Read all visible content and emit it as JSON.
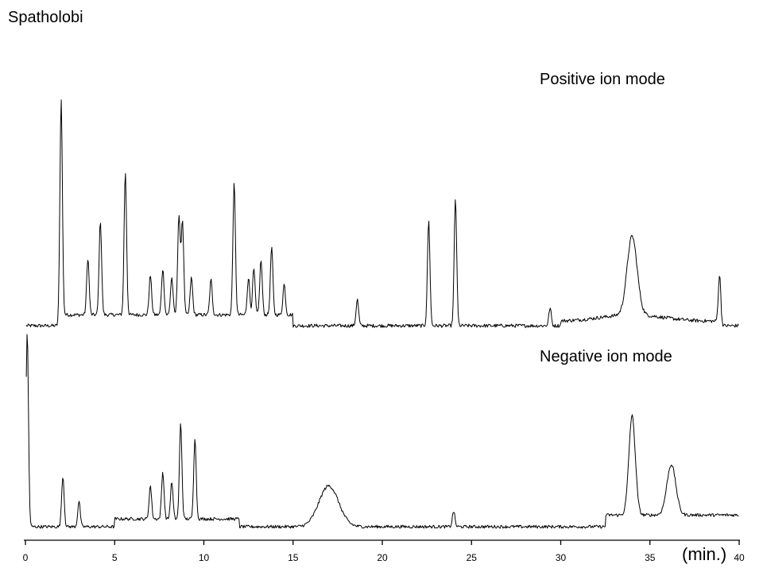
{
  "chart_data": {
    "type": "line",
    "title": "Spatholobi",
    "xlabel": "(min.)",
    "xlim": [
      0,
      40
    ],
    "x_ticks": [
      {
        "value": 0,
        "label": "0"
      },
      {
        "value": 5,
        "label": "5"
      },
      {
        "value": 10,
        "label": "10"
      },
      {
        "value": 15,
        "label": "15"
      },
      {
        "value": 20,
        "label": "20"
      },
      {
        "value": 25,
        "label": "25"
      },
      {
        "value": 30,
        "label": "30"
      },
      {
        "value": 35,
        "label": "35"
      },
      {
        "value": 40,
        "label": "40"
      }
    ],
    "grid": false,
    "y_axis_shown": false,
    "series": [
      {
        "name": "Positive ion mode",
        "baseline": 0,
        "peaks": [
          {
            "rt": 2.0,
            "height": 100
          },
          {
            "rt": 3.5,
            "height": 26
          },
          {
            "rt": 4.2,
            "height": 43
          },
          {
            "rt": 5.6,
            "height": 65
          },
          {
            "rt": 7.0,
            "height": 18
          },
          {
            "rt": 7.7,
            "height": 21
          },
          {
            "rt": 8.2,
            "height": 17
          },
          {
            "rt": 8.6,
            "height": 45
          },
          {
            "rt": 8.8,
            "height": 43
          },
          {
            "rt": 9.3,
            "height": 17
          },
          {
            "rt": 10.4,
            "height": 16
          },
          {
            "rt": 11.7,
            "height": 60
          },
          {
            "rt": 12.5,
            "height": 17
          },
          {
            "rt": 12.8,
            "height": 21
          },
          {
            "rt": 13.2,
            "height": 25
          },
          {
            "rt": 13.8,
            "height": 31
          },
          {
            "rt": 14.5,
            "height": 14
          },
          {
            "rt": 18.6,
            "height": 12
          },
          {
            "rt": 22.6,
            "height": 48
          },
          {
            "rt": 24.1,
            "height": 58
          },
          {
            "rt": 29.4,
            "height": 8
          },
          {
            "rt": 34.0,
            "height": 36
          },
          {
            "rt": 38.9,
            "height": 21
          }
        ]
      },
      {
        "name": "Negative ion mode",
        "baseline": 0,
        "peaks": [
          {
            "rt": 0.1,
            "height": 100
          },
          {
            "rt": 2.1,
            "height": 26
          },
          {
            "rt": 3.0,
            "height": 13
          },
          {
            "rt": 7.0,
            "height": 17
          },
          {
            "rt": 7.7,
            "height": 24
          },
          {
            "rt": 8.2,
            "height": 19
          },
          {
            "rt": 8.7,
            "height": 49
          },
          {
            "rt": 9.5,
            "height": 42
          },
          {
            "rt": 17.0,
            "height": 21
          },
          {
            "rt": 24.0,
            "height": 8
          },
          {
            "rt": 34.0,
            "height": 51
          },
          {
            "rt": 36.2,
            "height": 26
          }
        ]
      }
    ]
  }
}
